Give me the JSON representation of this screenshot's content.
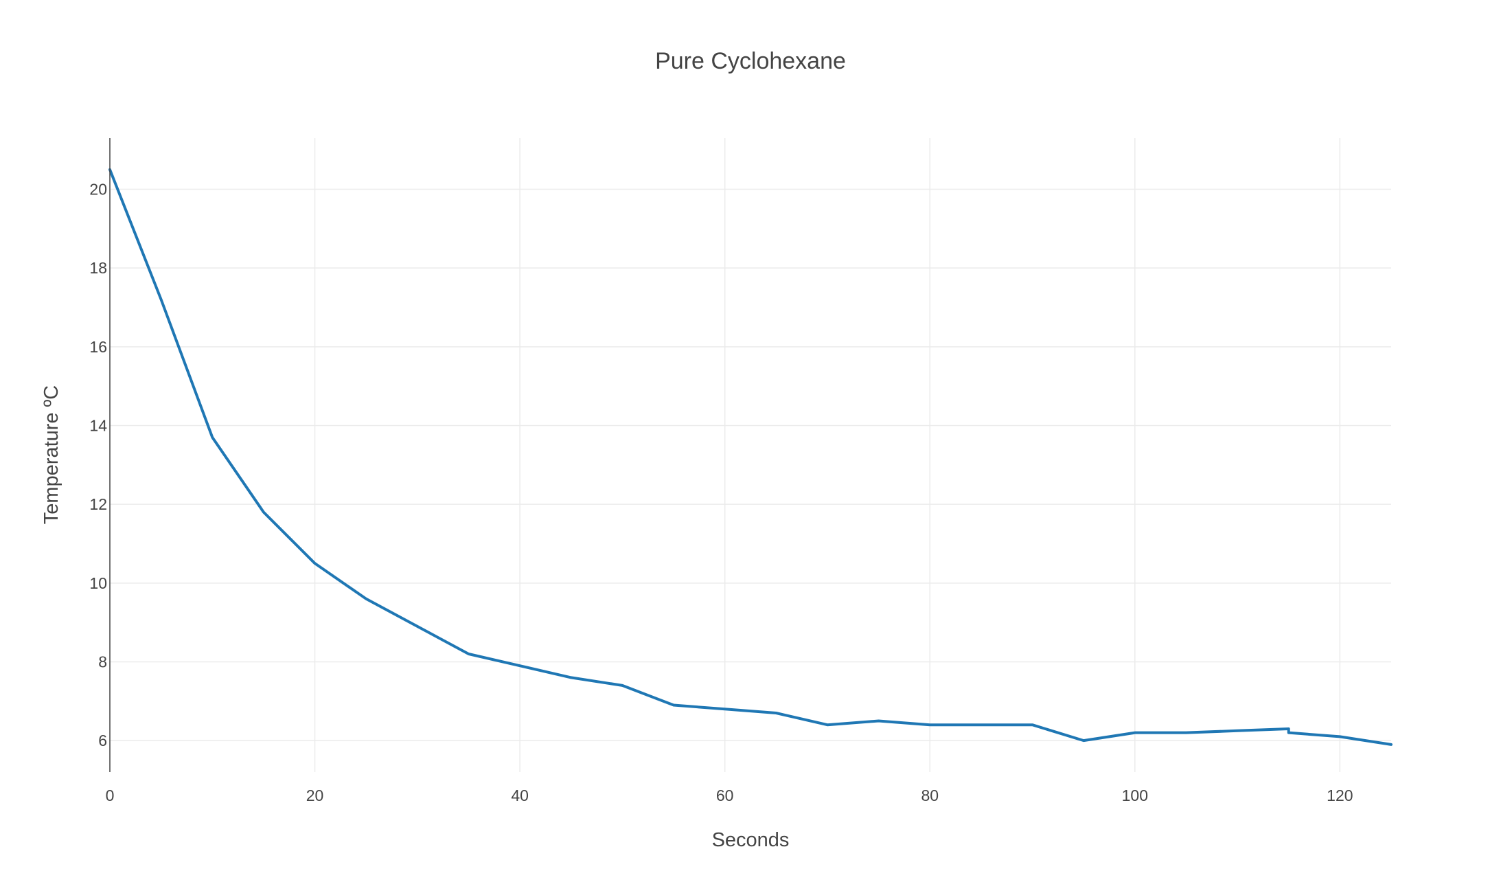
{
  "chart_data": {
    "type": "line",
    "title": "Pure Cyclohexane",
    "xlabel": "Seconds",
    "ylabel": "Temperature ºC",
    "xlim": [
      0,
      125
    ],
    "ylim": [
      5.2,
      21.3
    ],
    "x_ticks": [
      0,
      20,
      40,
      60,
      80,
      100,
      120
    ],
    "y_ticks": [
      6,
      8,
      10,
      12,
      14,
      16,
      18,
      20
    ],
    "grid": true,
    "series": [
      {
        "color": "#1f77b4",
        "x": [
          0,
          5,
          10,
          15,
          20,
          25,
          30,
          35,
          40,
          45,
          50,
          55,
          60,
          65,
          70,
          75,
          80,
          85,
          90,
          95,
          100,
          105,
          110,
          115,
          115,
          120,
          125
        ],
        "y": [
          20.5,
          17.2,
          13.7,
          11.8,
          10.5,
          9.6,
          8.9,
          8.2,
          7.9,
          7.6,
          7.4,
          6.9,
          6.8,
          6.7,
          6.4,
          6.5,
          6.4,
          6.4,
          6.4,
          6.0,
          6.2,
          6.2,
          6.25,
          6.3,
          6.2,
          6.1,
          5.9
        ]
      }
    ]
  }
}
